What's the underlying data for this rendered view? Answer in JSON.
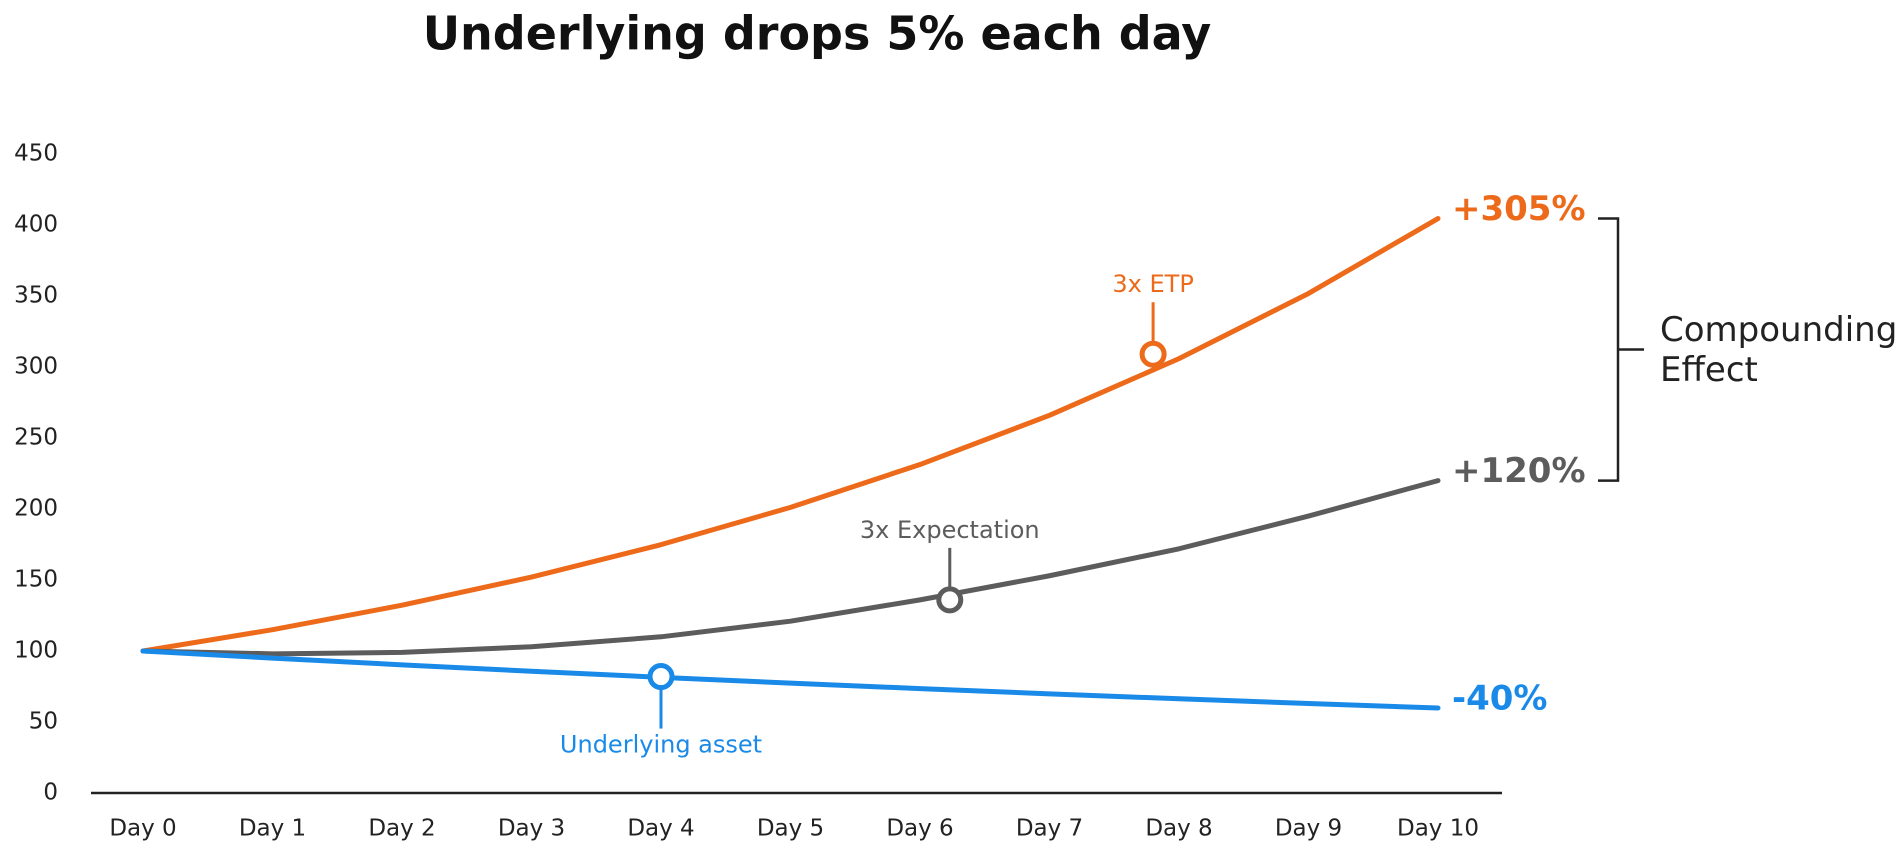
{
  "chart_data": {
    "type": "line",
    "title": "Underlying drops 5% each day",
    "categories": [
      "Day 0",
      "Day 1",
      "Day 2",
      "Day 3",
      "Day 4",
      "Day 5",
      "Day 6",
      "Day 7",
      "Day 8",
      "Day 9",
      "Day 10"
    ],
    "series": [
      {
        "name": "3x ETP",
        "color": "#ec6a1a",
        "values": [
          100,
          115,
          132.25,
          152.09,
          174.9,
          201.14,
          231.31,
          266,
          305.9,
          351.79,
          404.56
        ],
        "end_label": "+305%"
      },
      {
        "name": "3x Expectation",
        "color": "#5c5c5c",
        "values": [
          100,
          98,
          99,
          103,
          110,
          121,
          136,
          153,
          172,
          195,
          220
        ],
        "end_label": "+120%"
      },
      {
        "name": "Underlying asset",
        "color": "#1a8ae8",
        "values": [
          100,
          95,
          90.25,
          85.74,
          81.45,
          77.38,
          73.51,
          69.83,
          66.34,
          63.02,
          59.87
        ],
        "end_label": "-40%"
      }
    ],
    "annotations": [
      {
        "label": "3x ETP",
        "x": 7.8,
        "y": 309,
        "position": "above"
      },
      {
        "label": "3x Expectation",
        "x": 6.23,
        "y": 136,
        "position": "above"
      },
      {
        "label": "Underlying asset",
        "x": 4,
        "y": 82,
        "position": "below"
      }
    ],
    "bracket_label": "Compounding Effect",
    "ylim": [
      0,
      450
    ],
    "yticks": [
      0,
      50,
      100,
      150,
      200,
      250,
      300,
      350,
      400,
      450
    ],
    "grid": false
  }
}
